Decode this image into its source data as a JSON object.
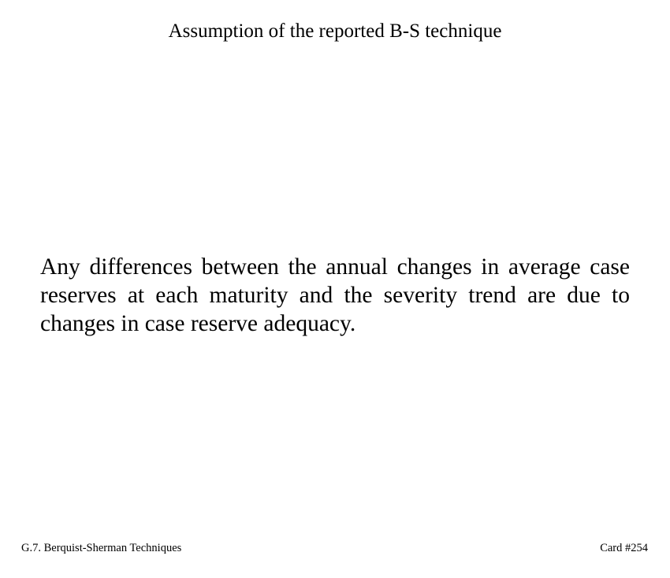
{
  "card": {
    "title": "Assumption of the reported B-S technique",
    "body": "Any differences between the annual changes in average case reserves at each maturity and the severity trend are due to changes in case reserve adequacy.",
    "footer": {
      "section": "G.7. Berquist-Sherman Techniques",
      "card_number": "Card #254"
    }
  }
}
